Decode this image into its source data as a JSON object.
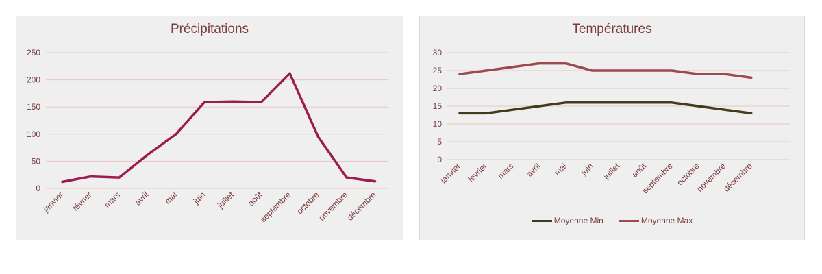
{
  "chart_data": [
    {
      "type": "line",
      "title": "Précipitations",
      "categories": [
        "janvier",
        "février",
        "mars",
        "avril",
        "mai",
        "juin",
        "juillet",
        "août",
        "septembre",
        "octobre",
        "novembre",
        "décembre"
      ],
      "series": [
        {
          "values": [
            12,
            22,
            20,
            62,
            100,
            159,
            160,
            159,
            212,
            95,
            20,
            13
          ],
          "color": "#9e1b50"
        }
      ],
      "ylim": [
        0,
        250
      ],
      "yticks": [
        0,
        50,
        100,
        150,
        200,
        250
      ],
      "grid": true,
      "legend": "none"
    },
    {
      "type": "line",
      "title": "Températures",
      "categories": [
        "janvier",
        "février",
        "mars",
        "avril",
        "mai",
        "juin",
        "juillet",
        "août",
        "septembre",
        "octobre",
        "novembre",
        "décembre"
      ],
      "series": [
        {
          "name": "Moyenne Min",
          "values": [
            13,
            13,
            14,
            15,
            16,
            16,
            16,
            16,
            16,
            15,
            14,
            13
          ],
          "color": "#433c1c"
        },
        {
          "name": "Moyenne Max",
          "values": [
            24,
            25,
            26,
            27,
            27,
            25,
            25,
            25,
            25,
            24,
            24,
            23
          ],
          "color": "#a0484b"
        }
      ],
      "ylim": [
        0,
        30
      ],
      "yticks": [
        0,
        5,
        10,
        15,
        20,
        25,
        30
      ],
      "grid": true,
      "legend": "bottom"
    }
  ],
  "style": {
    "axis_text_color": "#7a3b3b",
    "grid_color": "#e8c7c2"
  }
}
